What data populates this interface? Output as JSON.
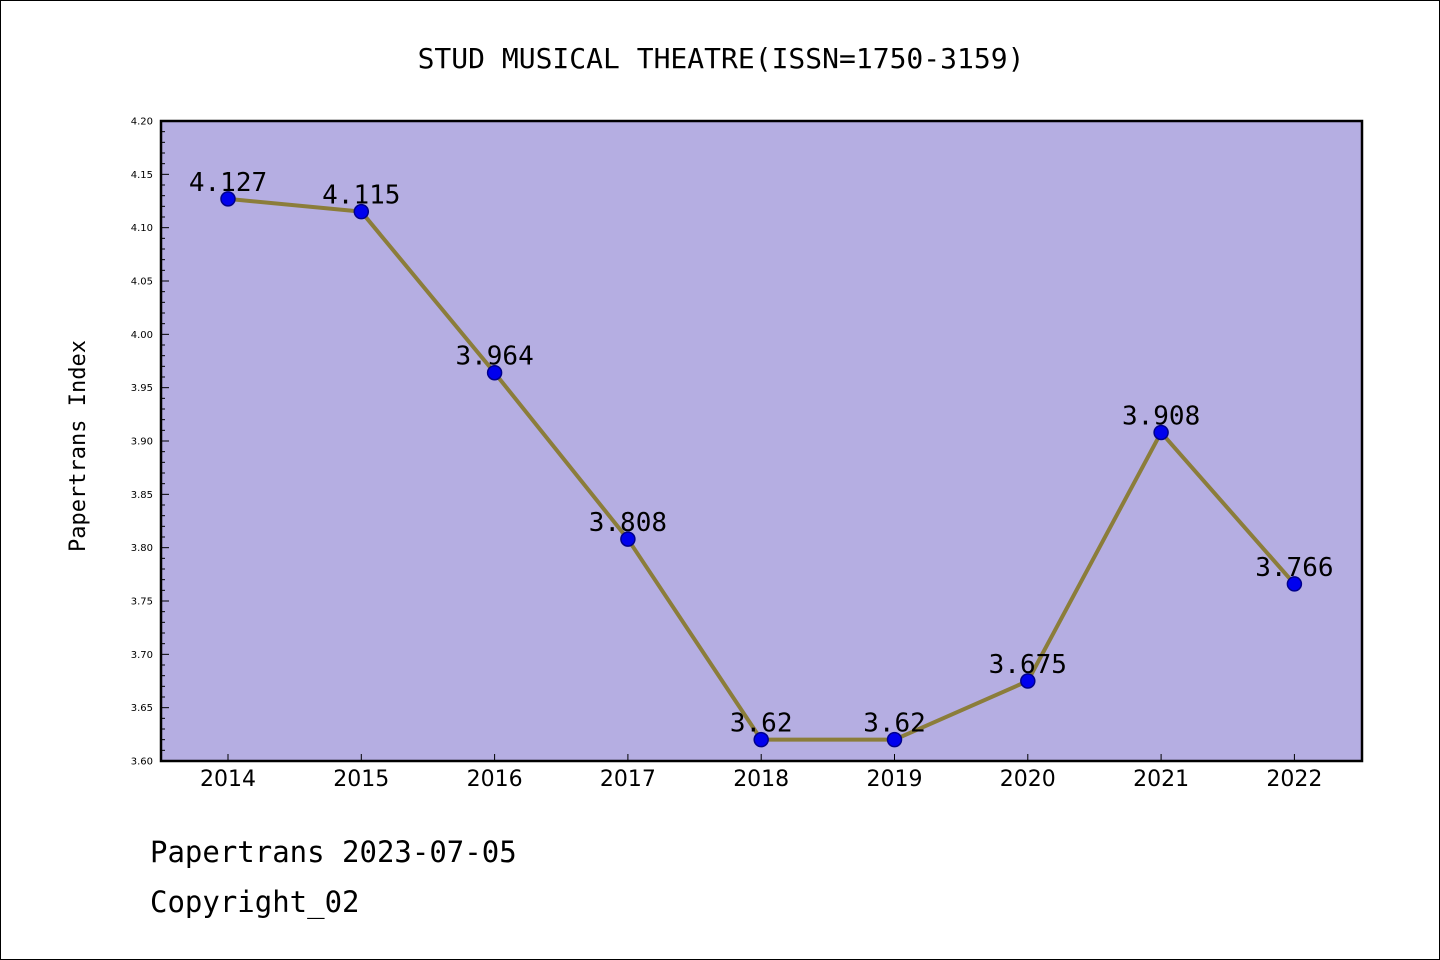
{
  "chart_data": {
    "type": "line",
    "title": "STUD MUSICAL THEATRE(ISSN=1750-3159)",
    "xlabel": "",
    "ylabel": "Papertrans Index",
    "categories": [
      "2014",
      "2015",
      "2016",
      "2017",
      "2018",
      "2019",
      "2020",
      "2021",
      "2022"
    ],
    "series": [
      {
        "values": [
          4.127,
          4.115,
          3.964,
          3.808,
          3.62,
          3.62,
          3.675,
          3.908,
          3.766
        ],
        "data_labels": [
          "4.127",
          "4.115",
          "3.964",
          "3.808",
          "3.62",
          "3.62",
          "3.675",
          "3.908",
          "3.766"
        ]
      }
    ],
    "ylim": [
      3.6,
      4.2
    ],
    "yticks": [
      "3.60",
      "3.65",
      "3.70",
      "3.75",
      "3.80",
      "3.85",
      "3.90",
      "3.95",
      "4.00",
      "4.05",
      "4.10",
      "4.15",
      "4.20"
    ],
    "grid": false,
    "legend": "none"
  },
  "footer": {
    "line1": "Papertrans 2023-07-05",
    "line2": "Copyright_02"
  },
  "colors": {
    "plot_background": "#b5aee2",
    "line": "#8b7d3a",
    "marker_fill": "#0000ee",
    "marker_stroke": "#00008b",
    "axis": "#000000"
  }
}
